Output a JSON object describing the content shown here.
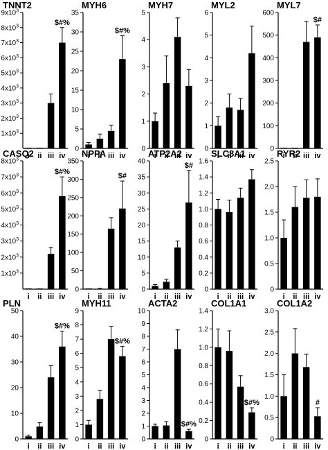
{
  "chart_data": [
    {
      "type": "bar",
      "title": "TNNT2",
      "categories": [
        "i",
        "ii",
        "iii",
        "iv"
      ],
      "values": [
        0,
        0,
        3000,
        7000
      ],
      "errors": [
        0,
        0,
        600,
        1000
      ],
      "annotations": [
        "",
        "",
        "",
        "$#%"
      ],
      "ylim": [
        0,
        9000
      ],
      "yticks": [
        1000,
        2000,
        3000,
        4000,
        5000,
        6000,
        7000,
        8000,
        9000
      ],
      "ytick_labels": [
        {
          "base": "1x10",
          "exp": "3"
        },
        {
          "base": "2x10",
          "exp": "3"
        },
        {
          "base": "3x10",
          "exp": "3"
        },
        {
          "base": "4x10",
          "exp": "3"
        },
        {
          "base": "5x10",
          "exp": "3"
        },
        {
          "base": "6x10",
          "exp": "3"
        },
        {
          "base": "7x10",
          "exp": "3"
        },
        {
          "base": "8x10",
          "exp": "3"
        },
        {
          "base": "9x10",
          "exp": "3"
        }
      ]
    },
    {
      "type": "bar",
      "title": "MYH6",
      "categories": [
        "i",
        "ii",
        "iii",
        "iv"
      ],
      "values": [
        1,
        2.5,
        4.5,
        23
      ],
      "errors": [
        0.5,
        1.2,
        1.5,
        6
      ],
      "annotations": [
        "",
        "",
        "",
        "$#%"
      ],
      "ylim": [
        0,
        35
      ],
      "yticks": [
        0,
        5,
        10,
        15,
        20,
        25,
        30,
        35
      ],
      "ytick_labels": [
        "0",
        "5",
        "10",
        "15",
        "20",
        "25",
        "30",
        "35"
      ]
    },
    {
      "type": "bar",
      "title": "MYH7",
      "categories": [
        "i",
        "ii",
        "iii",
        "iv"
      ],
      "values": [
        1,
        2.4,
        4.1,
        2.3
      ],
      "errors": [
        0.3,
        1,
        0.7,
        0.6
      ],
      "annotations": [
        "",
        "",
        "",
        ""
      ],
      "ylim": [
        0,
        5
      ],
      "yticks": [
        0,
        1,
        2,
        3,
        4,
        5
      ],
      "ytick_labels": [
        "0",
        "1",
        "2",
        "3",
        "4",
        "5"
      ]
    },
    {
      "type": "bar",
      "title": "MYL2",
      "categories": [
        "i",
        "ii",
        "iii",
        "iv"
      ],
      "values": [
        1,
        1.8,
        1.7,
        4.2
      ],
      "errors": [
        0.4,
        0.6,
        0.5,
        1.2
      ],
      "annotations": [
        "",
        "",
        "",
        ""
      ],
      "ylim": [
        0,
        6
      ],
      "yticks": [
        0,
        1,
        2,
        3,
        4,
        5,
        6
      ],
      "ytick_labels": [
        "0",
        "1",
        "2",
        "3",
        "4",
        "5",
        "6"
      ]
    },
    {
      "type": "bar",
      "title": "MYL7",
      "categories": [
        "i",
        "ii",
        "iii",
        "iv"
      ],
      "values": [
        0,
        0,
        470,
        490
      ],
      "errors": [
        0,
        0,
        90,
        55
      ],
      "annotations": [
        "",
        "",
        "",
        "$#"
      ],
      "ylim": [
        0,
        600
      ],
      "yticks": [
        0,
        100,
        200,
        300,
        400,
        500,
        600
      ],
      "ytick_labels": [
        "0",
        "100",
        "200",
        "300",
        "400",
        "500",
        "600"
      ]
    },
    {
      "type": "bar",
      "title": "CASQ2",
      "categories": [
        "i",
        "ii",
        "iii",
        "iv"
      ],
      "values": [
        0,
        0,
        2200,
        5800
      ],
      "errors": [
        0,
        0,
        400,
        1200
      ],
      "annotations": [
        "",
        "",
        "",
        "$#%"
      ],
      "ylim": [
        0,
        8000
      ],
      "yticks": [
        1000,
        2000,
        3000,
        4000,
        5000,
        6000,
        7000,
        8000
      ],
      "ytick_labels": [
        {
          "base": "1x10",
          "exp": "3"
        },
        {
          "base": "2x10",
          "exp": "3"
        },
        {
          "base": "3x10",
          "exp": "3"
        },
        {
          "base": "4x10",
          "exp": "3"
        },
        {
          "base": "5x10",
          "exp": "3"
        },
        {
          "base": "6x10",
          "exp": "3"
        },
        {
          "base": "7x10",
          "exp": "3"
        },
        {
          "base": "8x10",
          "exp": "3"
        }
      ]
    },
    {
      "type": "bar",
      "title": "NPPA",
      "categories": [
        "i",
        "ii",
        "iii",
        "iv"
      ],
      "values": [
        0,
        1,
        165,
        220
      ],
      "errors": [
        0,
        1,
        30,
        75
      ],
      "annotations": [
        "",
        "",
        "",
        "$#"
      ],
      "ylim": [
        0,
        350
      ],
      "yticks": [
        0,
        50,
        100,
        150,
        200,
        250,
        300,
        350
      ],
      "ytick_labels": [
        "0",
        "50",
        "100",
        "150",
        "200",
        "250",
        "300",
        "350"
      ]
    },
    {
      "type": "bar",
      "title": "ATP2A2",
      "categories": [
        "i",
        "ii",
        "iii",
        "iv"
      ],
      "values": [
        1,
        2.3,
        13,
        27
      ],
      "errors": [
        0.4,
        0.8,
        2,
        10
      ],
      "annotations": [
        "",
        "",
        "",
        "$#"
      ],
      "ylim": [
        0,
        40
      ],
      "yticks": [
        0,
        5,
        10,
        15,
        20,
        25,
        30,
        35,
        40
      ],
      "ytick_labels": [
        "0",
        "5",
        "10",
        "15",
        "20",
        "25",
        "30",
        "35",
        "40"
      ]
    },
    {
      "type": "bar",
      "title": "SLC8A1",
      "categories": [
        "i",
        "ii",
        "iii",
        "iv"
      ],
      "values": [
        1,
        0.96,
        1.14,
        1.37
      ],
      "errors": [
        0.12,
        0.15,
        0.12,
        0.12
      ],
      "annotations": [
        "",
        "",
        "",
        ""
      ],
      "ylim": [
        0,
        1.6
      ],
      "yticks": [
        0,
        0.2,
        0.4,
        0.6,
        0.8,
        1.0,
        1.2,
        1.4,
        1.6
      ],
      "ytick_labels": [
        "0",
        "0.2",
        "0.4",
        "0.6",
        "0.8",
        "1.0",
        "1.2",
        "1.4",
        "1.6"
      ]
    },
    {
      "type": "bar",
      "title": "RYR2",
      "categories": [
        "i",
        "ii",
        "iii",
        "iv"
      ],
      "values": [
        1,
        1.6,
        1.78,
        1.8
      ],
      "errors": [
        0.35,
        0.4,
        0.35,
        0.35
      ],
      "annotations": [
        "",
        "",
        "",
        ""
      ],
      "ylim": [
        0,
        2.5
      ],
      "yticks": [
        0,
        0.5,
        1.0,
        1.5,
        2.0,
        2.5
      ],
      "ytick_labels": [
        "0",
        "0.5",
        "1.0",
        "1.5",
        "2.0",
        "2.5"
      ]
    },
    {
      "type": "bar",
      "title": "PLN",
      "categories": [
        "i",
        "ii",
        "iii",
        "iv"
      ],
      "values": [
        1,
        4.8,
        24,
        36
      ],
      "errors": [
        0.5,
        1.5,
        4.5,
        6
      ],
      "annotations": [
        "",
        "",
        "",
        "$#%"
      ],
      "ylim": [
        0,
        50
      ],
      "yticks": [
        0,
        10,
        20,
        30,
        40,
        50
      ],
      "ytick_labels": [
        "0",
        "10",
        "20",
        "30",
        "40",
        "50"
      ]
    },
    {
      "type": "bar",
      "title": "MYH11",
      "categories": [
        "i",
        "ii",
        "iii",
        "iv"
      ],
      "values": [
        1,
        2.8,
        7,
        5.8
      ],
      "errors": [
        0.3,
        0.6,
        0.9,
        0.7
      ],
      "annotations": [
        "",
        "",
        "",
        "$#%"
      ],
      "ylim": [
        0,
        9
      ],
      "yticks": [
        0,
        1,
        2,
        3,
        4,
        5,
        6,
        7,
        8,
        9
      ],
      "ytick_labels": [
        "0",
        "1",
        "2",
        "3",
        "4",
        "5",
        "6",
        "7",
        "8",
        "9"
      ]
    },
    {
      "type": "bar",
      "title": "ACTA2",
      "categories": [
        "i",
        "ii",
        "iii",
        "iv"
      ],
      "values": [
        1,
        1.05,
        7,
        0.6
      ],
      "errors": [
        0.15,
        0.3,
        1.5,
        0.15
      ],
      "annotations": [
        "",
        "",
        "",
        "$#%"
      ],
      "ylim": [
        0,
        10
      ],
      "yticks": [
        0,
        1,
        2,
        3,
        4,
        5,
        6,
        7,
        8,
        9,
        10
      ],
      "ytick_labels": [
        "0",
        "1",
        "2",
        "3",
        "4",
        "5",
        "6",
        "7",
        "8",
        "9",
        "10"
      ]
    },
    {
      "type": "bar",
      "title": "COL1A1",
      "categories": [
        "i",
        "ii",
        "iii",
        "iv"
      ],
      "values": [
        1,
        0.96,
        0.57,
        0.29
      ],
      "errors": [
        0.2,
        0.22,
        0.12,
        0.05
      ],
      "annotations": [
        "",
        "",
        "",
        "$#%"
      ],
      "ylim": [
        0,
        1.4
      ],
      "yticks": [
        0,
        0.2,
        0.4,
        0.6,
        0.8,
        1.0,
        1.2,
        1.4
      ],
      "ytick_labels": [
        "0",
        "0.2",
        "0.4",
        "0.6",
        "0.8",
        "1.0",
        "1.2",
        "1.4"
      ]
    },
    {
      "type": "bar",
      "title": "COL1A2",
      "categories": [
        "i",
        "ii",
        "iii",
        "iv"
      ],
      "values": [
        1,
        2,
        1.68,
        0.53
      ],
      "errors": [
        0.5,
        0.58,
        0.3,
        0.2
      ],
      "annotations": [
        "",
        "",
        "",
        "#"
      ],
      "ylim": [
        0,
        3
      ],
      "yticks": [
        0,
        0.5,
        1.0,
        1.5,
        2.0,
        2.5,
        3.0
      ],
      "ytick_labels": [
        "0",
        "0.5",
        "1.0",
        "1.5",
        "2.0",
        "2.5",
        "3.0"
      ]
    }
  ]
}
